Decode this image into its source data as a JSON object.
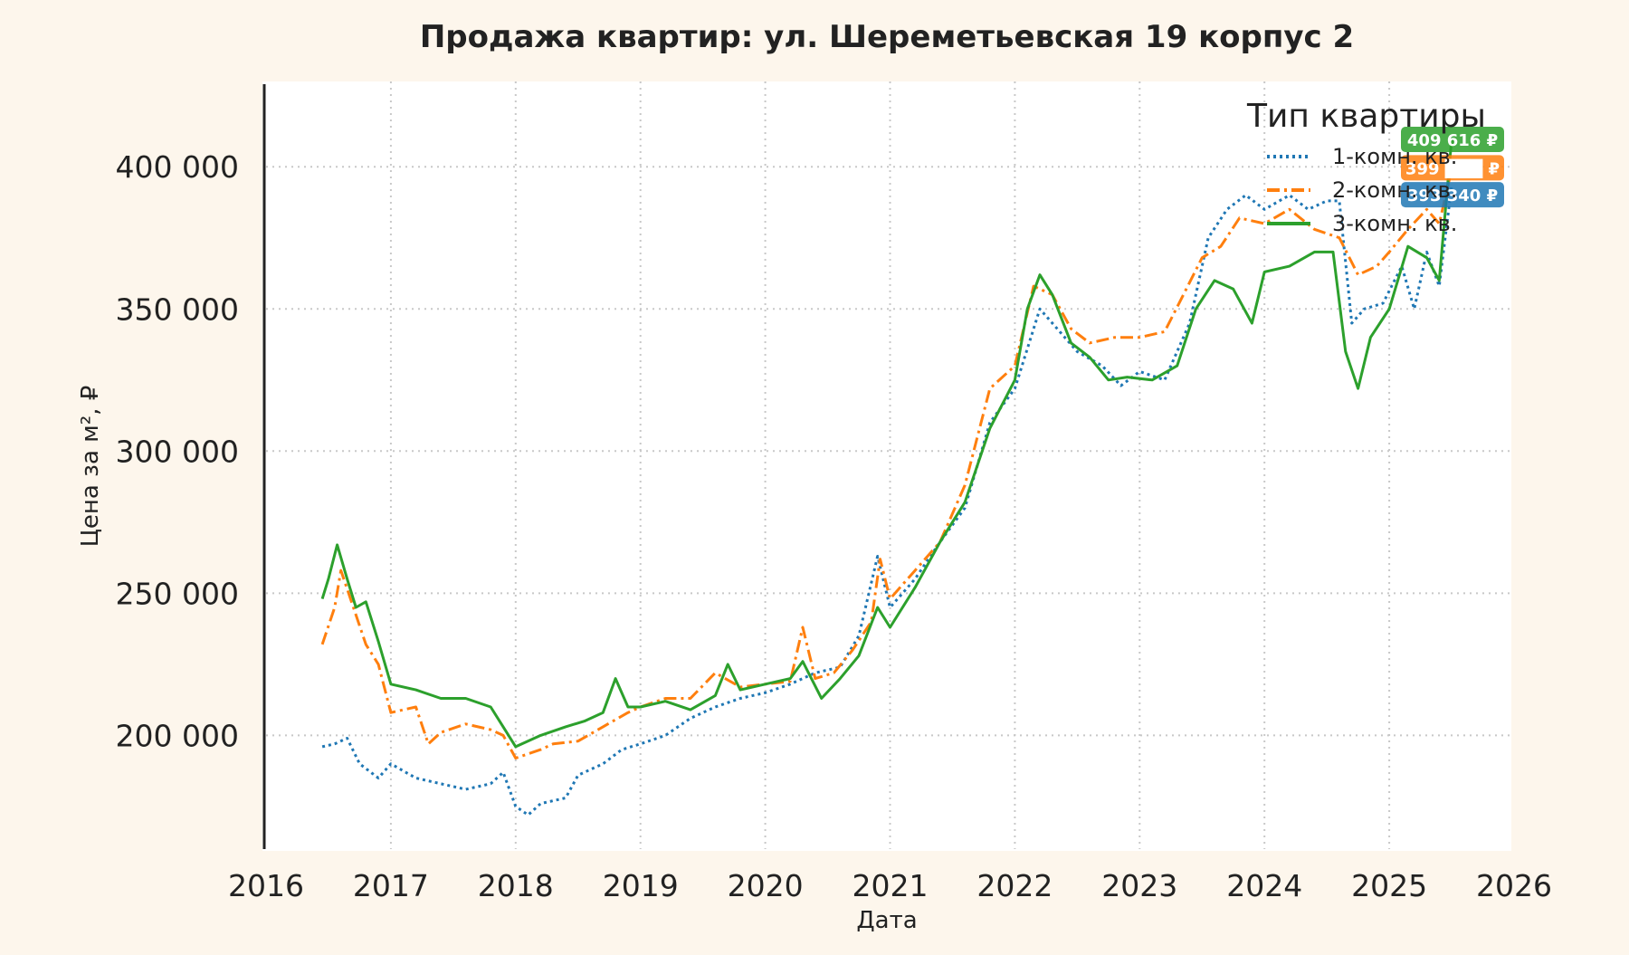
{
  "chart_data": {
    "type": "line",
    "title": "Продажа квартир: ул. Шереметьевская 19 корпус 2",
    "xlabel": "Дата",
    "ylabel": "Цена за м², ₽",
    "xlim": [
      2016,
      2026
    ],
    "ylim": [
      160000,
      430000
    ],
    "x_ticks": [
      "2016",
      "2017",
      "2018",
      "2019",
      "2020",
      "2021",
      "2022",
      "2023",
      "2024",
      "2025",
      "2026"
    ],
    "y_ticks": [
      "200 000",
      "250 000",
      "300 000",
      "350 000",
      "400 000"
    ],
    "grid": true,
    "legend": {
      "title": "Тип квартиры",
      "position": "top-right"
    },
    "series": [
      {
        "name": "1-комн. кв.",
        "color": "#1f77b4",
        "style": "dotted",
        "last_label": "393 340 ₽",
        "points": [
          [
            2016.45,
            196000
          ],
          [
            2016.55,
            197000
          ],
          [
            2016.65,
            199000
          ],
          [
            2016.75,
            190000
          ],
          [
            2016.9,
            185000
          ],
          [
            2017.0,
            190000
          ],
          [
            2017.2,
            185000
          ],
          [
            2017.4,
            183000
          ],
          [
            2017.6,
            181000
          ],
          [
            2017.8,
            183000
          ],
          [
            2017.9,
            187000
          ],
          [
            2018.0,
            175000
          ],
          [
            2018.1,
            172000
          ],
          [
            2018.2,
            176000
          ],
          [
            2018.4,
            178000
          ],
          [
            2018.5,
            186000
          ],
          [
            2018.7,
            190000
          ],
          [
            2018.85,
            195000
          ],
          [
            2019.0,
            197000
          ],
          [
            2019.2,
            200000
          ],
          [
            2019.4,
            206000
          ],
          [
            2019.6,
            210000
          ],
          [
            2019.8,
            213000
          ],
          [
            2020.0,
            215000
          ],
          [
            2020.2,
            218000
          ],
          [
            2020.4,
            222000
          ],
          [
            2020.6,
            224000
          ],
          [
            2020.75,
            235000
          ],
          [
            2020.9,
            263000
          ],
          [
            2021.0,
            245000
          ],
          [
            2021.2,
            255000
          ],
          [
            2021.4,
            268000
          ],
          [
            2021.6,
            280000
          ],
          [
            2021.8,
            310000
          ],
          [
            2022.0,
            322000
          ],
          [
            2022.2,
            350000
          ],
          [
            2022.3,
            345000
          ],
          [
            2022.5,
            335000
          ],
          [
            2022.7,
            330000
          ],
          [
            2022.85,
            323000
          ],
          [
            2023.0,
            328000
          ],
          [
            2023.2,
            325000
          ],
          [
            2023.4,
            345000
          ],
          [
            2023.55,
            375000
          ],
          [
            2023.7,
            385000
          ],
          [
            2023.85,
            390000
          ],
          [
            2024.0,
            385000
          ],
          [
            2024.2,
            390000
          ],
          [
            2024.35,
            385000
          ],
          [
            2024.5,
            388000
          ],
          [
            2024.6,
            388000
          ],
          [
            2024.7,
            345000
          ],
          [
            2024.8,
            350000
          ],
          [
            2024.95,
            352000
          ],
          [
            2025.1,
            365000
          ],
          [
            2025.2,
            350000
          ],
          [
            2025.3,
            370000
          ],
          [
            2025.4,
            358000
          ],
          [
            2025.5,
            393340
          ]
        ]
      },
      {
        "name": "2-комн. кв.",
        "color": "#ff7f0e",
        "style": "dashdot",
        "last_label": "399 ███ ₽",
        "points": [
          [
            2016.45,
            232000
          ],
          [
            2016.55,
            245000
          ],
          [
            2016.6,
            258000
          ],
          [
            2016.7,
            245000
          ],
          [
            2016.8,
            232000
          ],
          [
            2016.9,
            225000
          ],
          [
            2017.0,
            208000
          ],
          [
            2017.1,
            209000
          ],
          [
            2017.2,
            210000
          ],
          [
            2017.3,
            197000
          ],
          [
            2017.4,
            201000
          ],
          [
            2017.6,
            204000
          ],
          [
            2017.8,
            202000
          ],
          [
            2017.9,
            200000
          ],
          [
            2018.0,
            192000
          ],
          [
            2018.2,
            195000
          ],
          [
            2018.3,
            197000
          ],
          [
            2018.5,
            198000
          ],
          [
            2018.7,
            203000
          ],
          [
            2018.9,
            208000
          ],
          [
            2019.0,
            210000
          ],
          [
            2019.2,
            213000
          ],
          [
            2019.4,
            213000
          ],
          [
            2019.6,
            222000
          ],
          [
            2019.8,
            217000
          ],
          [
            2020.0,
            218000
          ],
          [
            2020.2,
            219000
          ],
          [
            2020.3,
            238000
          ],
          [
            2020.4,
            220000
          ],
          [
            2020.55,
            222000
          ],
          [
            2020.7,
            230000
          ],
          [
            2020.85,
            240000
          ],
          [
            2020.92,
            262000
          ],
          [
            2021.0,
            248000
          ],
          [
            2021.2,
            258000
          ],
          [
            2021.4,
            268000
          ],
          [
            2021.6,
            288000
          ],
          [
            2021.8,
            322000
          ],
          [
            2022.0,
            330000
          ],
          [
            2022.15,
            358000
          ],
          [
            2022.3,
            355000
          ],
          [
            2022.45,
            343000
          ],
          [
            2022.6,
            338000
          ],
          [
            2022.8,
            340000
          ],
          [
            2023.0,
            340000
          ],
          [
            2023.2,
            342000
          ],
          [
            2023.35,
            355000
          ],
          [
            2023.5,
            368000
          ],
          [
            2023.65,
            372000
          ],
          [
            2023.8,
            382000
          ],
          [
            2024.0,
            380000
          ],
          [
            2024.2,
            385000
          ],
          [
            2024.4,
            378000
          ],
          [
            2024.6,
            375000
          ],
          [
            2024.75,
            362000
          ],
          [
            2024.9,
            365000
          ],
          [
            2025.0,
            370000
          ],
          [
            2025.15,
            378000
          ],
          [
            2025.3,
            385000
          ],
          [
            2025.4,
            380000
          ],
          [
            2025.5,
            399000
          ]
        ]
      },
      {
        "name": "3-комн. кв.",
        "color": "#2ca02c",
        "style": "solid",
        "last_label": "409 616 ₽",
        "points": [
          [
            2016.45,
            248000
          ],
          [
            2016.5,
            255000
          ],
          [
            2016.57,
            267000
          ],
          [
            2016.65,
            255000
          ],
          [
            2016.72,
            245000
          ],
          [
            2016.8,
            247000
          ],
          [
            2016.9,
            233000
          ],
          [
            2017.0,
            218000
          ],
          [
            2017.2,
            216000
          ],
          [
            2017.4,
            213000
          ],
          [
            2017.6,
            213000
          ],
          [
            2017.8,
            210000
          ],
          [
            2017.9,
            203000
          ],
          [
            2018.0,
            196000
          ],
          [
            2018.2,
            200000
          ],
          [
            2018.4,
            203000
          ],
          [
            2018.55,
            205000
          ],
          [
            2018.7,
            208000
          ],
          [
            2018.8,
            220000
          ],
          [
            2018.9,
            210000
          ],
          [
            2019.0,
            210000
          ],
          [
            2019.2,
            212000
          ],
          [
            2019.4,
            209000
          ],
          [
            2019.6,
            214000
          ],
          [
            2019.7,
            225000
          ],
          [
            2019.8,
            216000
          ],
          [
            2020.0,
            218000
          ],
          [
            2020.2,
            220000
          ],
          [
            2020.3,
            226000
          ],
          [
            2020.45,
            213000
          ],
          [
            2020.6,
            220000
          ],
          [
            2020.75,
            228000
          ],
          [
            2020.9,
            245000
          ],
          [
            2021.0,
            238000
          ],
          [
            2021.2,
            252000
          ],
          [
            2021.4,
            268000
          ],
          [
            2021.6,
            282000
          ],
          [
            2021.8,
            308000
          ],
          [
            2022.0,
            325000
          ],
          [
            2022.1,
            350000
          ],
          [
            2022.2,
            362000
          ],
          [
            2022.3,
            355000
          ],
          [
            2022.45,
            338000
          ],
          [
            2022.6,
            333000
          ],
          [
            2022.75,
            325000
          ],
          [
            2022.9,
            326000
          ],
          [
            2023.1,
            325000
          ],
          [
            2023.3,
            330000
          ],
          [
            2023.45,
            350000
          ],
          [
            2023.6,
            360000
          ],
          [
            2023.75,
            357000
          ],
          [
            2023.9,
            345000
          ],
          [
            2024.0,
            363000
          ],
          [
            2024.2,
            365000
          ],
          [
            2024.4,
            370000
          ],
          [
            2024.55,
            370000
          ],
          [
            2024.65,
            335000
          ],
          [
            2024.75,
            322000
          ],
          [
            2024.85,
            340000
          ],
          [
            2025.0,
            350000
          ],
          [
            2025.15,
            372000
          ],
          [
            2025.3,
            368000
          ],
          [
            2025.4,
            360000
          ],
          [
            2025.5,
            409616
          ]
        ]
      }
    ]
  }
}
